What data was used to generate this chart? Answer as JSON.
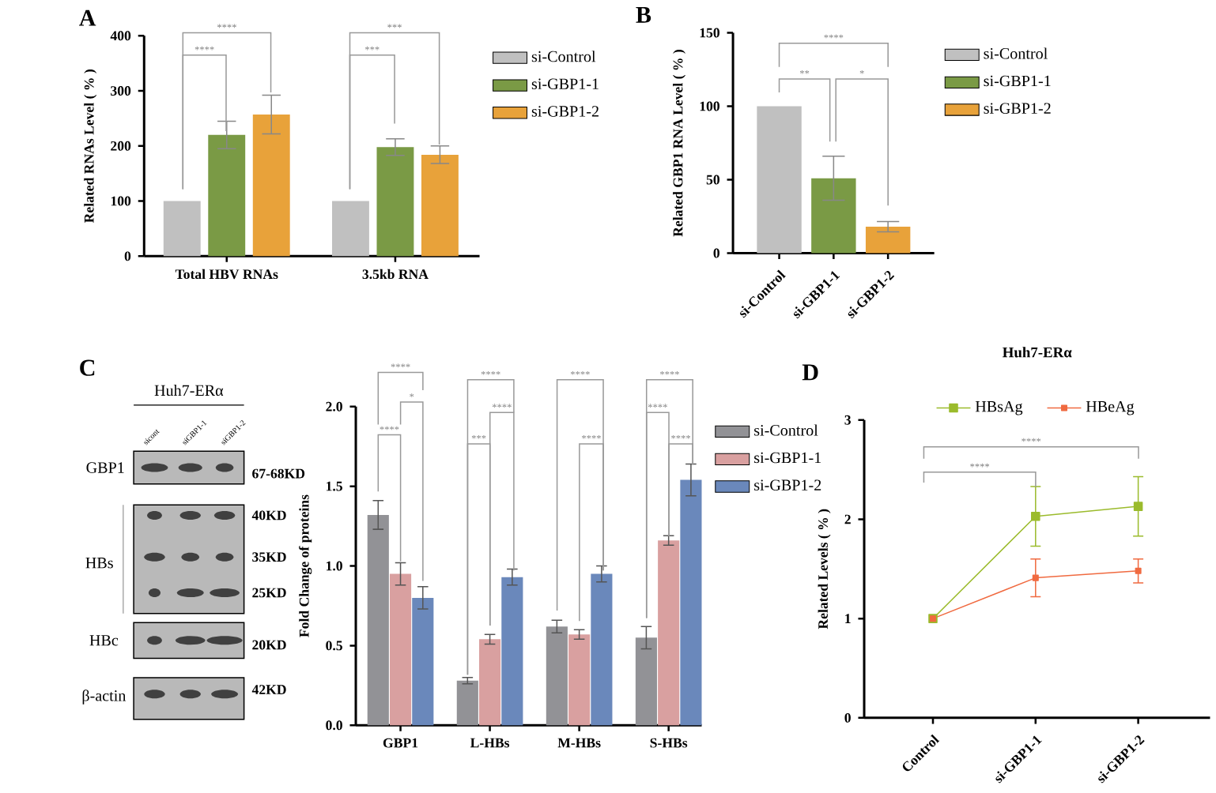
{
  "chart_data": [
    {
      "type": "bar",
      "ylabel": "Related RNAs Level ( % )",
      "categories": [
        "Total HBV RNAs",
        "3.5kb RNA"
      ],
      "series": [
        {
          "name": "si-Control",
          "color": "#c0c0c0",
          "values": [
            100,
            100
          ]
        },
        {
          "name": "si-GBP1-1",
          "color": "#7a9a45",
          "values": [
            220,
            198
          ],
          "errors": [
            25,
            15
          ]
        },
        {
          "name": "si-GBP1-2",
          "color": "#e8a23a",
          "values": [
            257,
            184
          ],
          "errors": [
            35,
            16
          ]
        }
      ],
      "ylim": [
        0,
        400
      ],
      "yticks": [
        0,
        100,
        200,
        300,
        400
      ],
      "legend": "right",
      "annotations": [
        "A",
        "****",
        "****",
        "***",
        "***"
      ]
    },
    {
      "type": "bar",
      "ylabel": "Related GBP1 RNA  Level ( % )",
      "categories": [
        "si-Control",
        "si-GBP1-1",
        "si-GBP1-2"
      ],
      "series": [
        {
          "name": "si-Control",
          "color": "#c0c0c0",
          "values": [
            100,
            null,
            null
          ]
        },
        {
          "name": "si-GBP1-1",
          "color": "#7a9a45",
          "values": [
            null,
            51,
            null
          ],
          "errors": [
            null,
            15,
            null
          ]
        },
        {
          "name": "si-GBP1-2",
          "color": "#e8a23a",
          "values": [
            null,
            null,
            18
          ],
          "errors": [
            null,
            null,
            3.5
          ]
        }
      ],
      "ylim": [
        0,
        150
      ],
      "yticks": [
        0,
        50,
        100,
        150
      ],
      "legend": "right",
      "annotations": [
        "B",
        "****",
        "**",
        "*"
      ]
    },
    {
      "type": "other",
      "annotations": [
        "C",
        "Huh7-ERα",
        "sicont",
        "siGBP1-1",
        "siGBP1-2",
        "GBP1",
        "67-68KD",
        "HBs",
        "40KD",
        "35KD",
        "25KD",
        "HBc",
        "20KD",
        "β-actin",
        "42KD"
      ]
    },
    {
      "type": "bar",
      "ylabel": "Fold Change of proteins",
      "categories": [
        "GBP1",
        "L-HBs",
        "M-HBs",
        "S-HBs"
      ],
      "series": [
        {
          "name": "si-Control",
          "color": "#929296",
          "values": [
            1.32,
            0.28,
            0.62,
            0.55
          ],
          "errors": [
            0.09,
            0.02,
            0.04,
            0.07
          ]
        },
        {
          "name": "si-GBP1-1",
          "color": "#d9a0a0",
          "values": [
            0.95,
            0.54,
            0.57,
            1.16
          ],
          "errors": [
            0.07,
            0.03,
            0.03,
            0.03
          ]
        },
        {
          "name": "si-GBP1-2",
          "color": "#6a88bb",
          "values": [
            0.8,
            0.93,
            0.95,
            1.54
          ],
          "errors": [
            0.07,
            0.05,
            0.05,
            0.1
          ]
        }
      ],
      "ylim": [
        0,
        2
      ],
      "yticks": [
        {
          "value": 0,
          "label": "0.0"
        },
        {
          "value": 0.5,
          "label": "0.5"
        },
        {
          "value": 1,
          "label": "1.0"
        },
        {
          "value": 1.5,
          "label": "1.5"
        },
        {
          "value": 2,
          "label": "2.0"
        }
      ],
      "legend": "right",
      "annotations": [
        "****",
        "*",
        "****",
        "****",
        "****",
        "***",
        "****",
        "****",
        "****",
        "****",
        "****"
      ]
    },
    {
      "type": "line",
      "title": "Huh7-ERα",
      "ylabel": "Related  Levels ( % )",
      "categories": [
        "Control",
        "si-GBP1-1",
        "si-GBP1-2"
      ],
      "series": [
        {
          "name": "HBsAg",
          "color": "#9bbb2c",
          "values": [
            1,
            2.03,
            2.13
          ],
          "errors": [
            null,
            0.3,
            0.3
          ]
        },
        {
          "name": "HBeAg",
          "color": "#f06a40",
          "values": [
            1,
            1.41,
            1.48
          ],
          "errors": [
            null,
            0.19,
            0.12
          ]
        }
      ],
      "ylim": [
        0,
        3
      ],
      "yticks": [
        0,
        1,
        2,
        3
      ],
      "legend": "top",
      "marker": "square",
      "annotations": [
        "D",
        "****",
        "****"
      ]
    }
  ]
}
